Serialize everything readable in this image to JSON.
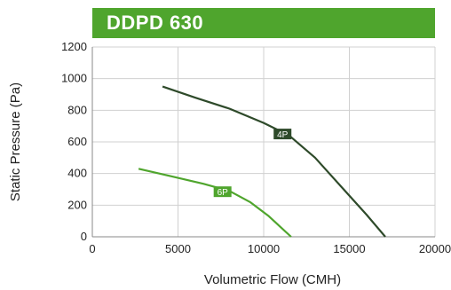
{
  "chart_data": {
    "type": "line",
    "title": "DDPD 630",
    "xlabel": "Volumetric Flow (CMH)",
    "ylabel": "Static Pressure (Pa)",
    "xlim": [
      0,
      20000
    ],
    "ylim": [
      0,
      1200
    ],
    "xticks": [
      "0",
      "5000",
      "10000",
      "15000",
      "20000"
    ],
    "yticks": [
      "0",
      "200",
      "400",
      "600",
      "800",
      "1000",
      "1200"
    ],
    "grid": true,
    "series": [
      {
        "name": "4P",
        "color": "#2e4a2a",
        "x": [
          4100,
          6000,
          8000,
          10000,
          11500,
          13000,
          14500,
          16000,
          17100
        ],
        "y": [
          950,
          880,
          810,
          720,
          640,
          500,
          320,
          140,
          0
        ],
        "label_at": [
          11100,
          650
        ]
      },
      {
        "name": "6P",
        "color": "#4fa52d",
        "x": [
          2700,
          4500,
          6500,
          8000,
          9200,
          10300,
          11000,
          11600
        ],
        "y": [
          430,
          385,
          335,
          290,
          220,
          130,
          60,
          0
        ],
        "label_at": [
          7600,
          285
        ]
      }
    ],
    "colors": {
      "banner": "#4fa52d",
      "grid": "#d0d0d0"
    }
  }
}
